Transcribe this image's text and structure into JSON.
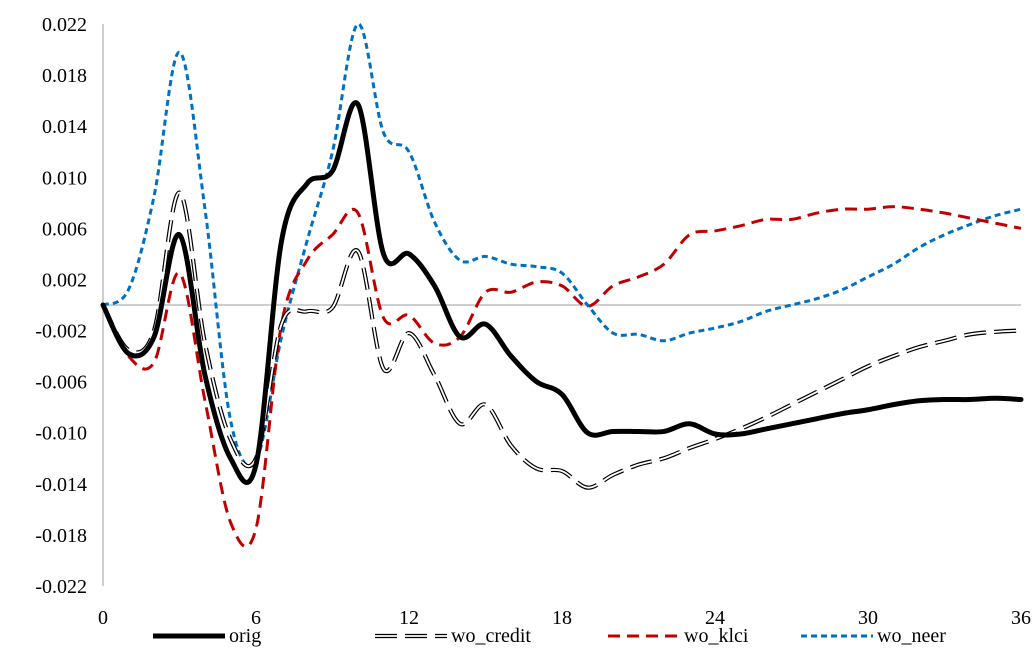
{
  "chart_data": {
    "type": "line",
    "title": "",
    "xlabel": "",
    "ylabel": "",
    "xlim": [
      0,
      36
    ],
    "ylim": [
      -0.022,
      0.022
    ],
    "x_ticks": [
      "0",
      "6",
      "12",
      "18",
      "24",
      "30",
      "36"
    ],
    "y_ticks": [
      "0.022",
      "0.018",
      "0.014",
      "0.010",
      "0.006",
      "0.002",
      "-0.002",
      "-0.006",
      "-0.010",
      "-0.014",
      "-0.018",
      "-0.022"
    ],
    "grid": false,
    "legend_position": "bottom",
    "x": [
      0,
      1,
      2,
      3,
      4,
      5,
      6,
      7,
      8,
      9,
      10,
      11,
      12,
      13,
      14,
      15,
      16,
      17,
      18,
      19,
      20,
      21,
      22,
      23,
      24,
      25,
      26,
      27,
      28,
      29,
      30,
      31,
      32,
      33,
      34,
      35,
      36
    ],
    "series": [
      {
        "name": "orig",
        "color": "#000000",
        "style": "solid",
        "values": [
          0.0,
          -0.0038,
          -0.0025,
          0.0055,
          -0.0055,
          -0.012,
          -0.0125,
          0.005,
          0.0095,
          0.0105,
          0.0157,
          0.004,
          0.004,
          0.0015,
          -0.0025,
          -0.0015,
          -0.004,
          -0.006,
          -0.007,
          -0.01,
          -0.0099,
          -0.0099,
          -0.0099,
          -0.0093,
          -0.0101,
          -0.0101,
          -0.0097,
          -0.0093,
          -0.0089,
          -0.0085,
          -0.0082,
          -0.0078,
          -0.0075,
          -0.0074,
          -0.0074,
          -0.0073,
          -0.0074
        ]
      },
      {
        "name": "wo_credit",
        "color": "#000000",
        "style": "long-dash",
        "values": [
          0.0,
          -0.0035,
          -0.002,
          0.0088,
          -0.003,
          -0.0105,
          -0.012,
          -0.0015,
          -0.0005,
          -0.0002,
          0.0042,
          -0.005,
          -0.0022,
          -0.0055,
          -0.0093,
          -0.0078,
          -0.011,
          -0.0128,
          -0.013,
          -0.0143,
          -0.0133,
          -0.0125,
          -0.012,
          -0.0112,
          -0.0105,
          -0.0097,
          -0.0088,
          -0.0078,
          -0.0068,
          -0.0058,
          -0.0048,
          -0.004,
          -0.0033,
          -0.0028,
          -0.0023,
          -0.0021,
          -0.002
        ]
      },
      {
        "name": "wo_klci",
        "color": "#c00000",
        "style": "dash",
        "values": [
          0.0,
          -0.004,
          -0.0045,
          0.0025,
          -0.0075,
          -0.017,
          -0.0175,
          -0.0015,
          0.0035,
          0.0055,
          0.0072,
          -0.001,
          -0.0008,
          -0.003,
          -0.0025,
          0.001,
          0.001,
          0.0018,
          0.0015,
          -0.0001,
          0.0015,
          0.0022,
          0.0032,
          0.0055,
          0.0058,
          0.0062,
          0.0067,
          0.0067,
          0.0072,
          0.0075,
          0.0075,
          0.0077,
          0.0075,
          0.0072,
          0.0068,
          0.0064,
          0.006
        ]
      },
      {
        "name": "wo_neer",
        "color": "#0070c0",
        "style": "dot",
        "values": [
          0.0,
          0.0012,
          0.0085,
          0.0198,
          0.0075,
          -0.009,
          -0.0122,
          -0.0025,
          0.005,
          0.012,
          0.022,
          0.0135,
          0.012,
          0.0065,
          0.0035,
          0.0038,
          0.0032,
          0.003,
          0.0025,
          0.0,
          -0.0022,
          -0.0023,
          -0.0028,
          -0.0022,
          -0.0018,
          -0.0013,
          -0.0005,
          0.0,
          0.0005,
          0.0012,
          0.0022,
          0.0032,
          0.0045,
          0.0055,
          0.0063,
          0.007,
          0.0075
        ]
      }
    ]
  }
}
